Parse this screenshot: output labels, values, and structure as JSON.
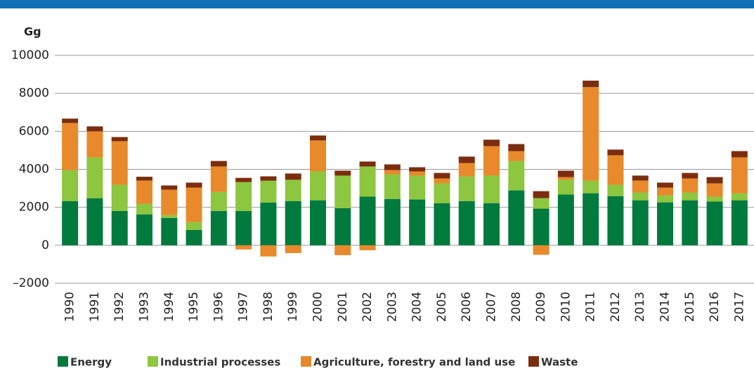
{
  "chart_data": {
    "type": "stacked-bar",
    "y_label": "Gg",
    "categories": [
      "1990",
      "1991",
      "1992",
      "1993",
      "1994",
      "1995",
      "1996",
      "1997",
      "1998",
      "1999",
      "2000",
      "2001",
      "2002",
      "2003",
      "2004",
      "2005",
      "2006",
      "2007",
      "2008",
      "2009",
      "2010",
      "2011",
      "2012",
      "2013",
      "2014",
      "2015",
      "2016",
      "2017"
    ],
    "series": [
      {
        "name": "Energy",
        "color": "#007a3d",
        "values": [
          2330,
          2480,
          1810,
          1630,
          1440,
          810,
          1810,
          1810,
          2250,
          2330,
          2370,
          1960,
          2560,
          2440,
          2410,
          2220,
          2330,
          2220,
          2890,
          1930,
          2670,
          2740,
          2590,
          2370,
          2260,
          2370,
          2300,
          2370
        ]
      },
      {
        "name": "Industrial processes",
        "color": "#8dc63f",
        "values": [
          1630,
          2150,
          1380,
          560,
          150,
          410,
          1000,
          1520,
          1150,
          1120,
          1520,
          1710,
          1590,
          1300,
          1260,
          1040,
          1300,
          1450,
          1550,
          550,
          770,
          670,
          600,
          410,
          370,
          410,
          260,
          370
        ]
      },
      {
        "name": "Agriculture, forestry and land use",
        "color": "#e8892b",
        "values": [
          2480,
          1370,
          2290,
          1220,
          1340,
          1820,
          1340,
          -220,
          -590,
          -410,
          1630,
          -520,
          -260,
          220,
          220,
          260,
          700,
          1550,
          520,
          -500,
          150,
          4920,
          1550,
          630,
          410,
          740,
          700,
          1890
        ]
      },
      {
        "name": "Waste",
        "color": "#7b2e0f",
        "values": [
          230,
          260,
          220,
          200,
          220,
          260,
          290,
          220,
          230,
          330,
          260,
          260,
          260,
          300,
          220,
          290,
          340,
          340,
          370,
          370,
          340,
          340,
          300,
          260,
          260,
          290,
          330,
          330
        ]
      }
    ],
    "ylim": [
      -2000,
      10000
    ],
    "yticks": [
      {
        "value": -2000,
        "label": "–2000"
      },
      0,
      2000,
      4000,
      6000,
      8000,
      10000
    ],
    "grid": true,
    "legend": "bottom"
  }
}
